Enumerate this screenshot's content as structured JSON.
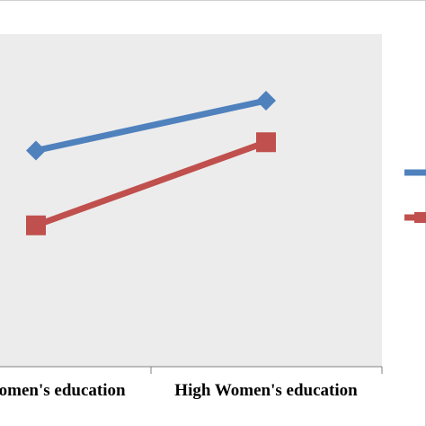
{
  "chart_data": {
    "type": "line",
    "title": "",
    "xlabel": "",
    "ylabel": "",
    "categories": [
      "Low Women's education",
      "High Women's education"
    ],
    "series": [
      {
        "values": [
          3.3,
          3.6
        ],
        "color": "#4f81bd",
        "marker": "diamond"
      },
      {
        "values": [
          2.85,
          3.35
        ],
        "color": "#c0504d",
        "marker": "square"
      }
    ],
    "ylim": [
      2.0,
      4.0
    ],
    "grid": false,
    "legend_position": "right",
    "plot_background": "#ececec"
  }
}
